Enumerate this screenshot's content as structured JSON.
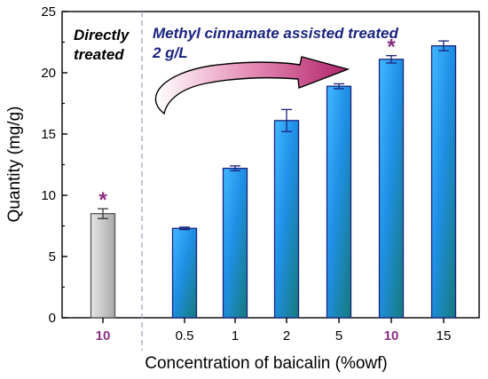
{
  "chart_data": {
    "type": "bar",
    "xlabel": "Concentration of baicalin (%owf)",
    "ylabel": "Quantity (mg/g)",
    "ylim": [
      0,
      25
    ],
    "yticks": [
      "0",
      "5",
      "10",
      "15",
      "20",
      "25"
    ],
    "categories": [
      "10",
      "0.5",
      "1",
      "2",
      "5",
      "10",
      "15"
    ],
    "values": [
      8.5,
      7.3,
      12.2,
      16.1,
      18.9,
      21.1,
      22.2
    ],
    "errors": [
      0.4,
      0.1,
      0.2,
      0.9,
      0.2,
      0.3,
      0.4
    ],
    "groups": [
      {
        "label_lines": [
          "Directly",
          "treated"
        ],
        "bars": [
          0
        ],
        "color": "#000000"
      },
      {
        "label_lines": [
          "Methyl cinnamate assisted treated",
          "2 g/L"
        ],
        "bars": [
          1,
          2,
          3,
          4,
          5,
          6
        ],
        "color": "#1a237e"
      }
    ],
    "highlighted_categories": [
      0,
      5
    ],
    "highlight_color": "#8b2d83",
    "marker_symbol": "*",
    "marked_bars": [
      0,
      5
    ],
    "colors": {
      "plain_bar": "#c8c8c8",
      "treated_bar_top": "#2fa9f5",
      "treated_bar_bottom": "#1a8080",
      "bar_outline": "#1a237e",
      "arrow": "#c2367a"
    },
    "grid": false,
    "legend": "none"
  }
}
